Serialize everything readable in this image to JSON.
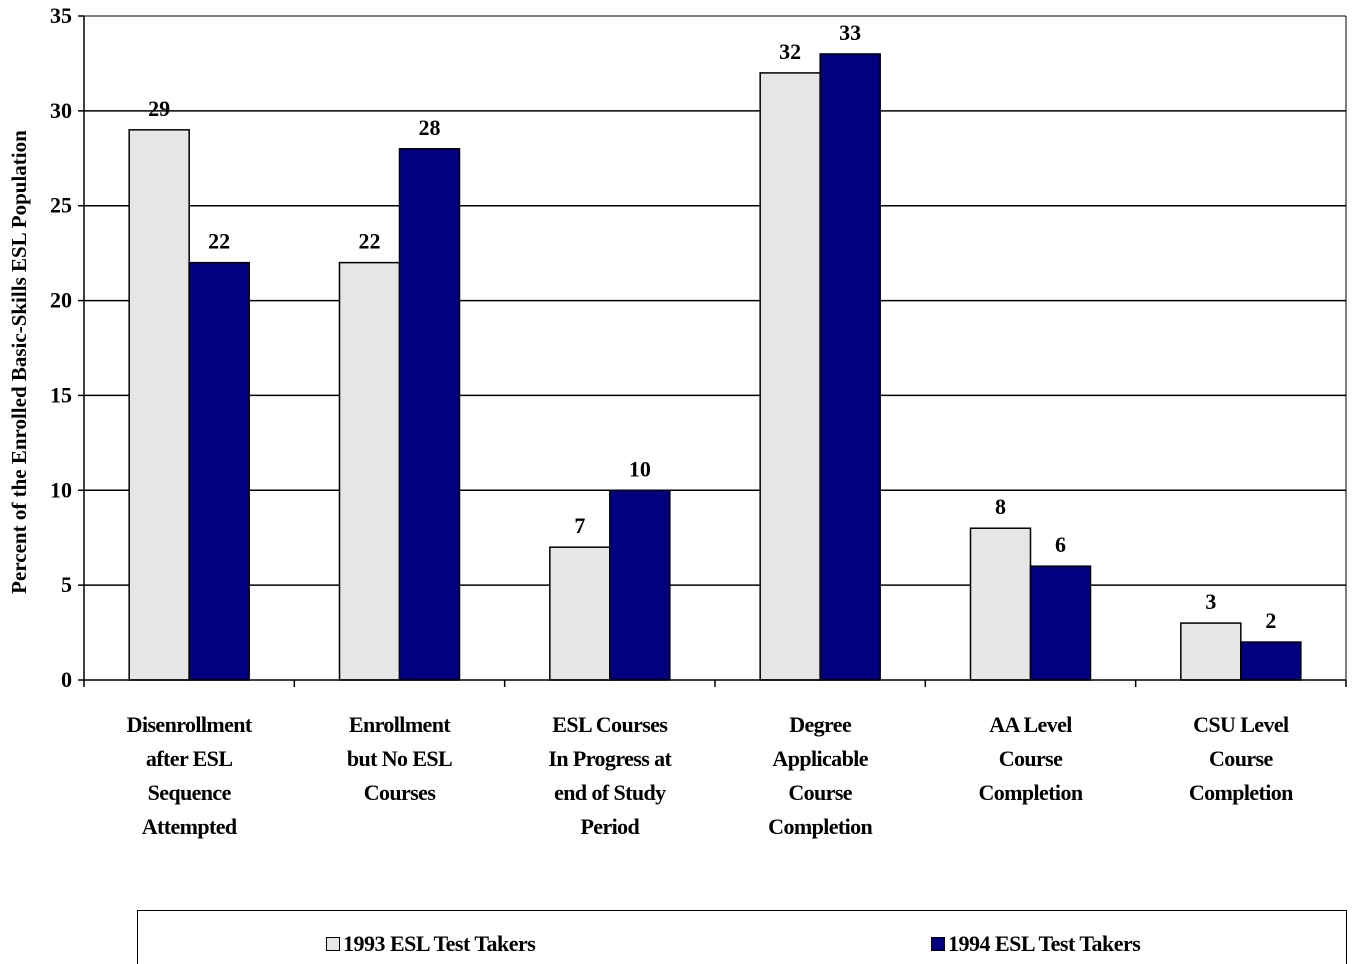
{
  "chart_data": {
    "type": "bar",
    "ylabel": "Percent of the Enrolled Basic-Skills ESL Population",
    "ylim": [
      0,
      35
    ],
    "yticks": [
      0,
      5,
      10,
      15,
      20,
      25,
      30,
      35
    ],
    "grid": true,
    "legend_position": "bottom",
    "categories": [
      [
        "Disenrollment",
        "after ESL",
        "Sequence",
        "Attempted"
      ],
      [
        "Enrollment",
        "but No ESL",
        "Courses"
      ],
      [
        "ESL Courses",
        "In Progress at",
        "end of Study",
        "Period"
      ],
      [
        "Degree",
        "Applicable",
        "Course",
        "Completion"
      ],
      [
        "AA Level",
        "Course",
        "Completion"
      ],
      [
        "CSU Level",
        "Course",
        "Completion"
      ]
    ],
    "series": [
      {
        "name": "1993 ESL Test Takers",
        "values": [
          29,
          22,
          7,
          32,
          8,
          3
        ],
        "color": "#e6e6e6"
      },
      {
        "name": "1994 ESL Test Takers",
        "values": [
          22,
          28,
          10,
          33,
          6,
          2
        ],
        "color": "#000080"
      }
    ]
  }
}
